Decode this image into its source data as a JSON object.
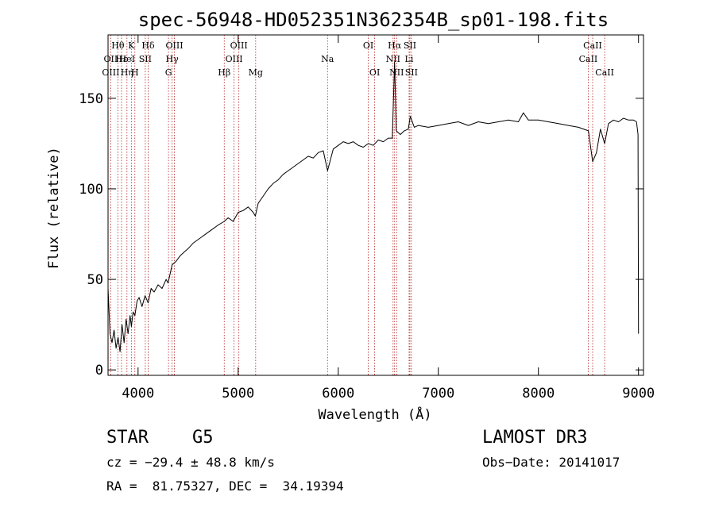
{
  "chart_data": {
    "type": "line",
    "title": "spec-56948-HD052351N362354B_sp01-198.fits",
    "xlabel": "Wavelength (Å)",
    "ylabel": "Flux (relative)",
    "xlim": [
      3700,
      9050
    ],
    "ylim": [
      -3,
      185
    ],
    "x_ticks": [
      4000,
      5000,
      6000,
      7000,
      8000,
      9000
    ],
    "y_ticks": [
      0,
      50,
      100,
      150
    ],
    "grid": false,
    "series": [
      {
        "x": [
          3700,
          3720,
          3740,
          3760,
          3780,
          3800,
          3820,
          3840,
          3860,
          3880,
          3900,
          3920,
          3933,
          3950,
          3968,
          3990,
          4010,
          4040,
          4070,
          4101,
          4130,
          4160,
          4200,
          4240,
          4280,
          4300,
          4340,
          4380,
          4420,
          4460,
          4500,
          4550,
          4600,
          4650,
          4700,
          4750,
          4800,
          4861,
          4900,
          4950,
          5000,
          5050,
          5100,
          5150,
          5172,
          5200,
          5250,
          5300,
          5350,
          5400,
          5450,
          5500,
          5550,
          5600,
          5650,
          5700,
          5750,
          5800,
          5850,
          5893,
          5950,
          6000,
          6050,
          6100,
          6150,
          6200,
          6250,
          6300,
          6350,
          6400,
          6450,
          6500,
          6540,
          6563,
          6580,
          6620,
          6660,
          6700,
          6720,
          6760,
          6800,
          6900,
          7000,
          7100,
          7200,
          7300,
          7400,
          7500,
          7600,
          7700,
          7800,
          7850,
          7900,
          8000,
          8100,
          8200,
          8300,
          8400,
          8500,
          8542,
          8580,
          8620,
          8662,
          8700,
          8750,
          8800,
          8850,
          8900,
          8950,
          8980,
          8995,
          9000
        ],
        "y": [
          45,
          20,
          15,
          22,
          12,
          18,
          10,
          25,
          15,
          28,
          20,
          30,
          24,
          32,
          30,
          38,
          40,
          35,
          41,
          37,
          45,
          43,
          47,
          45,
          50,
          48,
          58,
          60,
          63,
          65,
          67,
          70,
          72,
          74,
          76,
          78,
          80,
          82,
          84,
          82,
          87,
          88,
          90,
          87,
          85,
          92,
          96,
          100,
          103,
          105,
          108,
          110,
          112,
          114,
          116,
          118,
          117,
          120,
          121,
          110,
          122,
          124,
          126,
          125,
          126,
          124,
          123,
          125,
          124,
          127,
          126,
          128,
          128,
          170,
          132,
          130,
          132,
          133,
          140,
          134,
          135,
          134,
          135,
          136,
          137,
          135,
          137,
          136,
          137,
          138,
          137,
          142,
          138,
          138,
          137,
          136,
          135,
          134,
          132,
          115,
          120,
          133,
          125,
          136,
          138,
          137,
          139,
          138,
          138,
          137,
          130,
          20
        ]
      }
    ],
    "line_markers": [
      {
        "label": "Hθ",
        "x": 3798,
        "row": 0
      },
      {
        "label": "OII",
        "x": 3727,
        "row": 1
      },
      {
        "label": "OIII",
        "x": 3727,
        "row": 2
      },
      {
        "label": "Hε",
        "x": 3835,
        "row": 1
      },
      {
        "label": "Hη",
        "x": 3889,
        "row": 2
      },
      {
        "label": "K",
        "x": 3933,
        "row": 0
      },
      {
        "label": "HeI",
        "x": 3889,
        "row": 1
      },
      {
        "label": "H",
        "x": 3968,
        "row": 2
      },
      {
        "label": "Hδ",
        "x": 4101,
        "row": 0
      },
      {
        "label": "SII",
        "x": 4072,
        "row": 1
      },
      {
        "label": "OIII",
        "x": 4363,
        "row": 0
      },
      {
        "label": "Hγ",
        "x": 4340,
        "row": 1
      },
      {
        "label": "G",
        "x": 4304,
        "row": 2
      },
      {
        "label": "OIII",
        "x": 5007,
        "row": 0
      },
      {
        "label": "OIII",
        "x": 4959,
        "row": 1
      },
      {
        "label": "Hβ",
        "x": 4861,
        "row": 2
      },
      {
        "label": "Mg",
        "x": 5175,
        "row": 2
      },
      {
        "label": "Na",
        "x": 5893,
        "row": 1
      },
      {
        "label": "OI",
        "x": 6300,
        "row": 0
      },
      {
        "label": "OI",
        "x": 6364,
        "row": 2
      },
      {
        "label": "Hα",
        "x": 6563,
        "row": 0
      },
      {
        "label": "SII",
        "x": 6716,
        "row": 0
      },
      {
        "label": "NII",
        "x": 6548,
        "row": 1
      },
      {
        "label": "Li",
        "x": 6708,
        "row": 1
      },
      {
        "label": "NII",
        "x": 6584,
        "row": 2
      },
      {
        "label": "SII",
        "x": 6731,
        "row": 2
      },
      {
        "label": "CaII",
        "x": 8542,
        "row": 0
      },
      {
        "label": "CaII",
        "x": 8498,
        "row": 1
      },
      {
        "label": "CaII",
        "x": 8662,
        "row": 2
      }
    ],
    "line_marker_positions": [
      3727,
      3798,
      3835,
      3889,
      3933,
      3968,
      4072,
      4101,
      4304,
      4340,
      4363,
      4861,
      4959,
      5007,
      5175,
      5893,
      6300,
      6364,
      6548,
      6563,
      6584,
      6708,
      6716,
      6731,
      8498,
      8542,
      8662
    ]
  },
  "info": {
    "object_class": "STAR",
    "subclass": "G5",
    "survey": "LAMOST DR3",
    "redshift": "cz = −29.4 ± 48.8 km/s",
    "obs_date": "Obs−Date: 20141017",
    "coords": "RA =  81.75327, DEC =  34.19394"
  },
  "colors": {
    "spectrum": "#000000",
    "line_marker": "#b22222",
    "axis": "#000000"
  }
}
